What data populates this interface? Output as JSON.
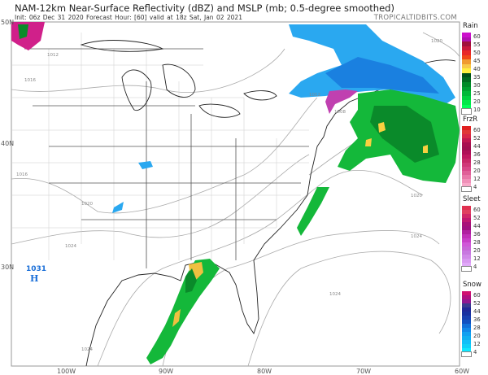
{
  "header": {
    "title": "NAM-12km Near-Surface Reflectivity (dBZ) and MSLP (mb; 0.5-degree smoothed)",
    "subtitle": "Init: 06z Dec 31 2020   Forecast Hour: [60]   valid at 18z Sat, Jan 02 2021",
    "brand": "TROPICALTIDBITS.COM"
  },
  "axes": {
    "lat_labels": [
      "50N",
      "40N",
      "30N"
    ],
    "lon_labels": [
      "100W",
      "90W",
      "80W",
      "70W",
      "60W"
    ]
  },
  "map": {
    "high_center": {
      "pressure": "1031",
      "symbol": "H",
      "color": "#1a6fd8"
    },
    "isobar_labels": [
      "1008",
      "1012",
      "1012",
      "1016",
      "1016",
      "1020",
      "1020",
      "1020",
      "1024",
      "1024",
      "1024",
      "1024"
    ]
  },
  "legends": [
    {
      "title": "Rain",
      "ticks": [
        "60",
        "55",
        "50",
        "45",
        "40",
        "35",
        "30",
        "25",
        "20",
        "10"
      ],
      "colors": [
        "#cc10cc",
        "#b010b0",
        "#a0103c",
        "#c8183c",
        "#e82828",
        "#f04818",
        "#f09a30",
        "#f8c848",
        "#fff040",
        "#00501a",
        "#006a20",
        "#008a28",
        "#00a030",
        "#00b838",
        "#00d040",
        "#00e848",
        "#00ff58",
        "#ffffff"
      ]
    },
    {
      "title": "FrzR",
      "ticks": [
        "60",
        "52",
        "44",
        "36",
        "28",
        "20",
        "12",
        "4"
      ],
      "colors": [
        "#e02020",
        "#e03838",
        "#d82848",
        "#c01850",
        "#a81050",
        "#a01050",
        "#b01058",
        "#c01860",
        "#c82868",
        "#d03878",
        "#d84888",
        "#e06098",
        "#e878a8",
        "#f090b8",
        "#f8a8c8",
        "#ffffff"
      ]
    },
    {
      "title": "Sleet",
      "ticks": [
        "60",
        "52",
        "44",
        "36",
        "28",
        "20",
        "12",
        "4"
      ],
      "colors": [
        "#e03050",
        "#e04060",
        "#d02868",
        "#c01870",
        "#a81078",
        "#a01080",
        "#b020a0",
        "#c030b8",
        "#c840c8",
        "#d058d8",
        "#c868d8",
        "#c878e0",
        "#d088e8",
        "#d898f0",
        "#e0a8f8",
        "#ffffff"
      ]
    },
    {
      "title": "Snow",
      "ticks": [
        "60",
        "52",
        "44",
        "36",
        "28",
        "20",
        "12",
        "4"
      ],
      "colors": [
        "#d01070",
        "#b01080",
        "#901890",
        "#3a3a90",
        "#202898",
        "#1830a0",
        "#1840b0",
        "#1050c0",
        "#1070d8",
        "#1088e8",
        "#10a0f0",
        "#10b0f0",
        "#10c0f8",
        "#10d0f8",
        "#10e8ff",
        "#ffffff"
      ]
    }
  ]
}
